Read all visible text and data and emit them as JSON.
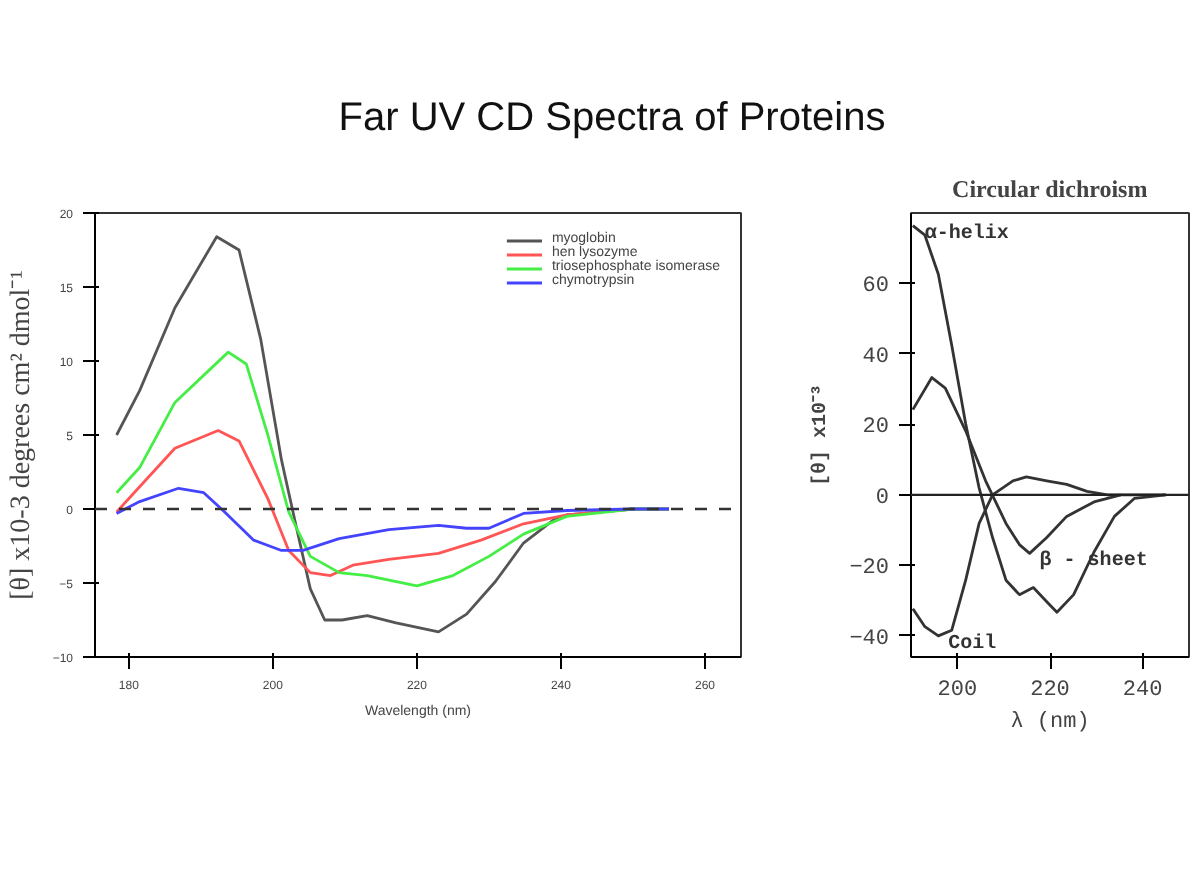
{
  "chart_data": [
    {
      "type": "line",
      "title": "Far UV CD Spectra of Proteins",
      "xlabel": "Wavelength (nm)",
      "ylabel": "[θ] x10-3 degrees cm² dmol⁻¹",
      "xlim": [
        175.3,
        265
      ],
      "ylim": [
        -10,
        20
      ],
      "xticks": [
        180,
        200,
        220,
        240,
        260
      ],
      "yticks": [
        -10,
        -5,
        0,
        5,
        10,
        15,
        20
      ],
      "grid": false,
      "legend": "top right",
      "line_style": "solid",
      "marker": "none",
      "ref_lines": [
        {
          "axis": "y",
          "value": 0,
          "line_style": "dashed",
          "color": "#333333"
        }
      ],
      "series": [
        {
          "name": "myoglobin",
          "color": "#555555",
          "x": [
            178.3,
            181.5,
            186.4,
            192.2,
            195.3,
            198.3,
            201.2,
            203.2,
            205.2,
            207.2,
            209.6,
            213.1,
            217.1,
            223.0,
            226.9,
            230.9,
            234.8,
            238.8,
            240.8,
            250,
            255
          ],
          "values": [
            5.0,
            8.0,
            13.6,
            18.4,
            17.5,
            11.5,
            3.3,
            -1.1,
            -5.4,
            -7.5,
            -7.5,
            -7.2,
            -7.7,
            -8.3,
            -7.1,
            -4.9,
            -2.3,
            -0.8,
            -0.4,
            0,
            0
          ]
        },
        {
          "name": "hen lysozyme",
          "color": "#ff5555",
          "x": [
            178.3,
            181.5,
            186.4,
            192.4,
            195.3,
            199.3,
            202.2,
            205.2,
            208,
            211.1,
            216.1,
            223,
            228.9,
            234.8,
            240.8,
            250,
            255
          ],
          "values": [
            -0.2,
            1.5,
            4.1,
            5.3,
            4.6,
            0.7,
            -2.8,
            -4.3,
            -4.5,
            -3.8,
            -3.4,
            -3.0,
            -2.1,
            -1.0,
            -0.4,
            0,
            0
          ]
        },
        {
          "name": "triosephosphate isomerase",
          "color": "#44ee44",
          "x": [
            178.3,
            181.5,
            186.4,
            193.8,
            196.3,
            199.3,
            202.2,
            205.2,
            209.2,
            213.1,
            220,
            225,
            230,
            234.8,
            240.8,
            250,
            255
          ],
          "values": [
            1.1,
            2.8,
            7.2,
            10.6,
            9.8,
            5.0,
            -0.2,
            -3.2,
            -4.3,
            -4.5,
            -5.2,
            -4.5,
            -3.2,
            -1.7,
            -0.5,
            0,
            0
          ]
        },
        {
          "name": "chymotrypsin",
          "color": "#4444ff",
          "x": [
            178.3,
            181.5,
            186.9,
            190.4,
            193.3,
            197.3,
            201.2,
            204.2,
            209.2,
            216.1,
            223,
            226.9,
            230,
            234.8,
            240.8,
            250,
            255
          ],
          "values": [
            -0.3,
            0.5,
            1.4,
            1.1,
            -0.2,
            -2.1,
            -2.8,
            -2.8,
            -2.0,
            -1.4,
            -1.1,
            -1.3,
            -1.3,
            -0.3,
            -0.1,
            0,
            0
          ]
        }
      ]
    },
    {
      "type": "line",
      "title": "Circular dichroism",
      "xlabel": "λ (nm)",
      "ylabel": "[θ] x10⁻³",
      "xlim": [
        190,
        250
      ],
      "ylim": [
        -46,
        80
      ],
      "xticks": [
        200,
        220,
        240
      ],
      "yticks": [
        -40,
        -20,
        0,
        20,
        40,
        60
      ],
      "grid": false,
      "legend": false,
      "line_style": "solid",
      "marker": "none",
      "ref_lines": [
        {
          "axis": "y",
          "value": 0,
          "color": "#222222"
        }
      ],
      "series": [
        {
          "name": "α-helix",
          "color": "#333333",
          "x": [
            190.4,
            193,
            195.9,
            198.8,
            201.8,
            204.7,
            207.6,
            210.5,
            213.4,
            216.4,
            219.3,
            221.5,
            225.1,
            229.5,
            233.9,
            238.2,
            245
          ],
          "values": [
            76.4,
            73.7,
            62.6,
            42.4,
            20.2,
            2.0,
            -12.1,
            -24.2,
            -28.3,
            -26.3,
            -30.3,
            -33.3,
            -28.3,
            -16.2,
            -6.1,
            -1.0,
            0
          ]
        },
        {
          "name": "β - sheet",
          "color": "#333333",
          "x": [
            190.4,
            194.5,
            197.4,
            201.8,
            206.1,
            210.5,
            213.4,
            215.6,
            219.3,
            223.6,
            229.5,
            235.3
          ],
          "values": [
            24.2,
            33.3,
            30.3,
            18.2,
            4.0,
            -8.1,
            -14.1,
            -16.6,
            -12.1,
            -6.1,
            -2.0,
            0
          ]
        },
        {
          "name": "Coil",
          "color": "#333333",
          "x": [
            190.4,
            193,
            195.9,
            198.8,
            201.8,
            204.7,
            207.6,
            212,
            214.9,
            219.3,
            223.6,
            228,
            232.4,
            245
          ],
          "values": [
            -32.3,
            -37.4,
            -40.0,
            -38.4,
            -24.2,
            -8.1,
            0,
            4.0,
            5.1,
            4.0,
            3.0,
            1.0,
            0,
            0
          ]
        }
      ]
    }
  ]
}
